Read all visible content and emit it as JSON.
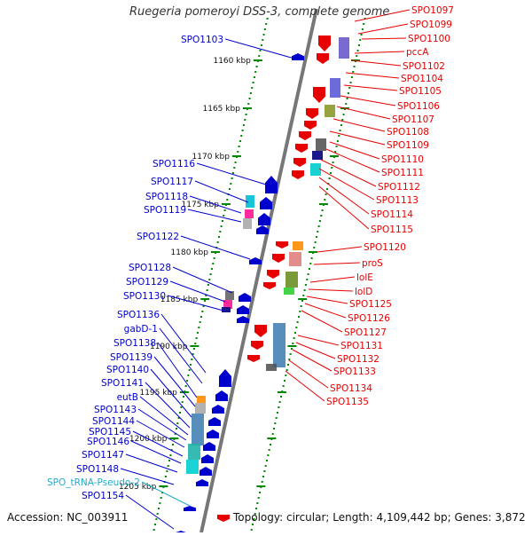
{
  "title": "Ruegeria pomeroyi DSS-3, complete genome",
  "footer": {
    "accession": "Accession: NC_003911",
    "summary": "Topology: circular; Length: 4,109,442 bp; Genes: 3,872"
  },
  "colors": {
    "forward_gene": "#e60000",
    "reverse_gene": "#0000cc",
    "trna": "#22aacc",
    "axis": "#888888",
    "tick": "#008800"
  },
  "scale": {
    "unit": "kbp",
    "ticks": [
      "1160 kbp",
      "1165 kbp",
      "1170 kbp",
      "1175 kbp",
      "1180 kbp",
      "1185 kbp",
      "1190 kbp",
      "1195 kbp",
      "1200 kbp",
      "1205 kbp"
    ]
  },
  "left_labels": [
    {
      "name": "SPO1103",
      "type": "gene"
    },
    {
      "name": "SPO1116",
      "type": "gene"
    },
    {
      "name": "SPO1117",
      "type": "gene"
    },
    {
      "name": "SPO1118",
      "type": "gene"
    },
    {
      "name": "SPO1119",
      "type": "gene"
    },
    {
      "name": "SPO1122",
      "type": "gene"
    },
    {
      "name": "SPO1128",
      "type": "gene"
    },
    {
      "name": "SPO1129",
      "type": "gene"
    },
    {
      "name": "SPO1130",
      "type": "gene"
    },
    {
      "name": "SPO1136",
      "type": "gene"
    },
    {
      "name": "gabD-1",
      "type": "gene"
    },
    {
      "name": "SPO1138",
      "type": "gene"
    },
    {
      "name": "SPO1139",
      "type": "gene"
    },
    {
      "name": "SPO1140",
      "type": "gene"
    },
    {
      "name": "SPO1141",
      "type": "gene"
    },
    {
      "name": "eutB",
      "type": "gene"
    },
    {
      "name": "SPO1143",
      "type": "gene"
    },
    {
      "name": "SPO1144",
      "type": "gene"
    },
    {
      "name": "SPO1145",
      "type": "gene"
    },
    {
      "name": "SPO1146",
      "type": "gene"
    },
    {
      "name": "SPO1147",
      "type": "gene"
    },
    {
      "name": "SPO1148",
      "type": "gene"
    },
    {
      "name": "SPO_tRNA-Pseudo-2",
      "type": "trna"
    },
    {
      "name": "SPO1154",
      "type": "gene"
    }
  ],
  "right_labels": [
    "SPO1097",
    "SPO1099",
    "SPO1100",
    "pccA",
    "SPO1102",
    "SPO1104",
    "SPO1105",
    "SPO1106",
    "SPO1107",
    "SPO1108",
    "SPO1109",
    "SPO1110",
    "SPO1111",
    "SPO1112",
    "SPO1113",
    "SPO1114",
    "SPO1115",
    "SPO1120",
    "proS",
    "lolE",
    "lolD",
    "SPO1125",
    "SPO1126",
    "SPO1127",
    "SPO1131",
    "SPO1132",
    "SPO1133",
    "SPO1134",
    "SPO1135"
  ]
}
